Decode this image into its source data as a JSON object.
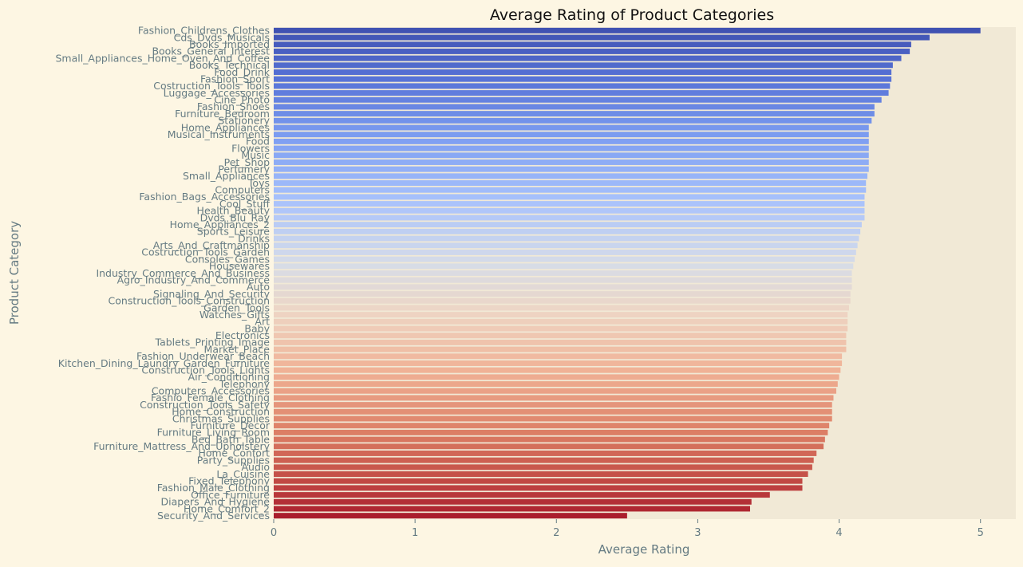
{
  "chart_data": {
    "type": "bar",
    "orientation": "horizontal",
    "title": "Average Rating of Product Categories",
    "xlabel": "Average Rating",
    "ylabel": "Product Category",
    "xlim": [
      0,
      5.25
    ],
    "xticks": [
      "0",
      "1",
      "2",
      "3",
      "4",
      "5"
    ],
    "grid": false,
    "legend": "none",
    "colormap": "coolwarm (blue at top to red at bottom)",
    "colors": {
      "background": "#fdf6e3",
      "plot_area": "#f1e9d6",
      "text": "#657b83",
      "title": "#111111"
    },
    "categories": [
      "Fashion_Childrens_Clothes",
      "Cds_Dvds_Musicals",
      "Books_Imported",
      "Books_General_Interest",
      "Small_Appliances_Home_Oven_And_Coffee",
      "Books_Technical",
      "Food_Drink",
      "Fashion_Sport",
      "Costruction_Tools_Tools",
      "Luggage_Accessories",
      "Cine_Photo",
      "Fashion_Shoes",
      "Furniture_Bedroom",
      "Stationery",
      "Home_Appliances",
      "Musical_Instruments",
      "Food",
      "Flowers",
      "Music",
      "Pet_Shop",
      "Perfumery",
      "Small_Appliances",
      "Toys",
      "Computers",
      "Fashion_Bags_Accessories",
      "Cool_Stuff",
      "Health_Beauty",
      "Dvds_Blu_Ray",
      "Home_Appliances_2",
      "Sports_Leisure",
      "Drinks",
      "Arts_And_Craftmanship",
      "Costruction_Tools_Garden",
      "Consoles_Games",
      "Housewares",
      "Industry_Commerce_And_Business",
      "Agro_Industry_And_Commerce",
      "Auto",
      "Signaling_And_Security",
      "Construction_Tools_Construction",
      "Garden_Tools",
      "Watches_Gifts",
      "Art",
      "Baby",
      "Electronics",
      "Tablets_Printing_Image",
      "Market_Place",
      "Fashion_Underwear_Beach",
      "Kitchen_Dining_Laundry_Garden_Furniture",
      "Construction_Tools_Lights",
      "Air_Conditioning",
      "Telephony",
      "Computers_Accessories",
      "Fashio_Female_Clothing",
      "Construction_Tools_Safety",
      "Home_Construction",
      "Christmas_Supplies",
      "Furniture_Decor",
      "Furniture_Living_Room",
      "Bed_Bath_Table",
      "Furniture_Mattress_And_Upholstery",
      "Home_Confort",
      "Party_Supplies",
      "Audio",
      "La_Cuisine",
      "Fixed_Telephony",
      "Fashion_Male_Clothing",
      "Office_Furniture",
      "Diapers_And_Hygiene",
      "Home_Comfort_2",
      "Security_And_Services"
    ],
    "values": [
      5.0,
      4.64,
      4.51,
      4.5,
      4.44,
      4.38,
      4.37,
      4.37,
      4.36,
      4.35,
      4.3,
      4.25,
      4.25,
      4.23,
      4.21,
      4.21,
      4.21,
      4.21,
      4.21,
      4.21,
      4.21,
      4.2,
      4.19,
      4.19,
      4.18,
      4.18,
      4.18,
      4.18,
      4.16,
      4.15,
      4.14,
      4.13,
      4.12,
      4.11,
      4.1,
      4.09,
      4.09,
      4.09,
      4.08,
      4.08,
      4.07,
      4.06,
      4.06,
      4.06,
      4.05,
      4.05,
      4.05,
      4.02,
      4.02,
      4.01,
      4.0,
      3.99,
      3.98,
      3.96,
      3.95,
      3.95,
      3.95,
      3.93,
      3.92,
      3.9,
      3.89,
      3.84,
      3.82,
      3.81,
      3.78,
      3.74,
      3.74,
      3.51,
      3.38,
      3.37,
      2.5
    ]
  }
}
